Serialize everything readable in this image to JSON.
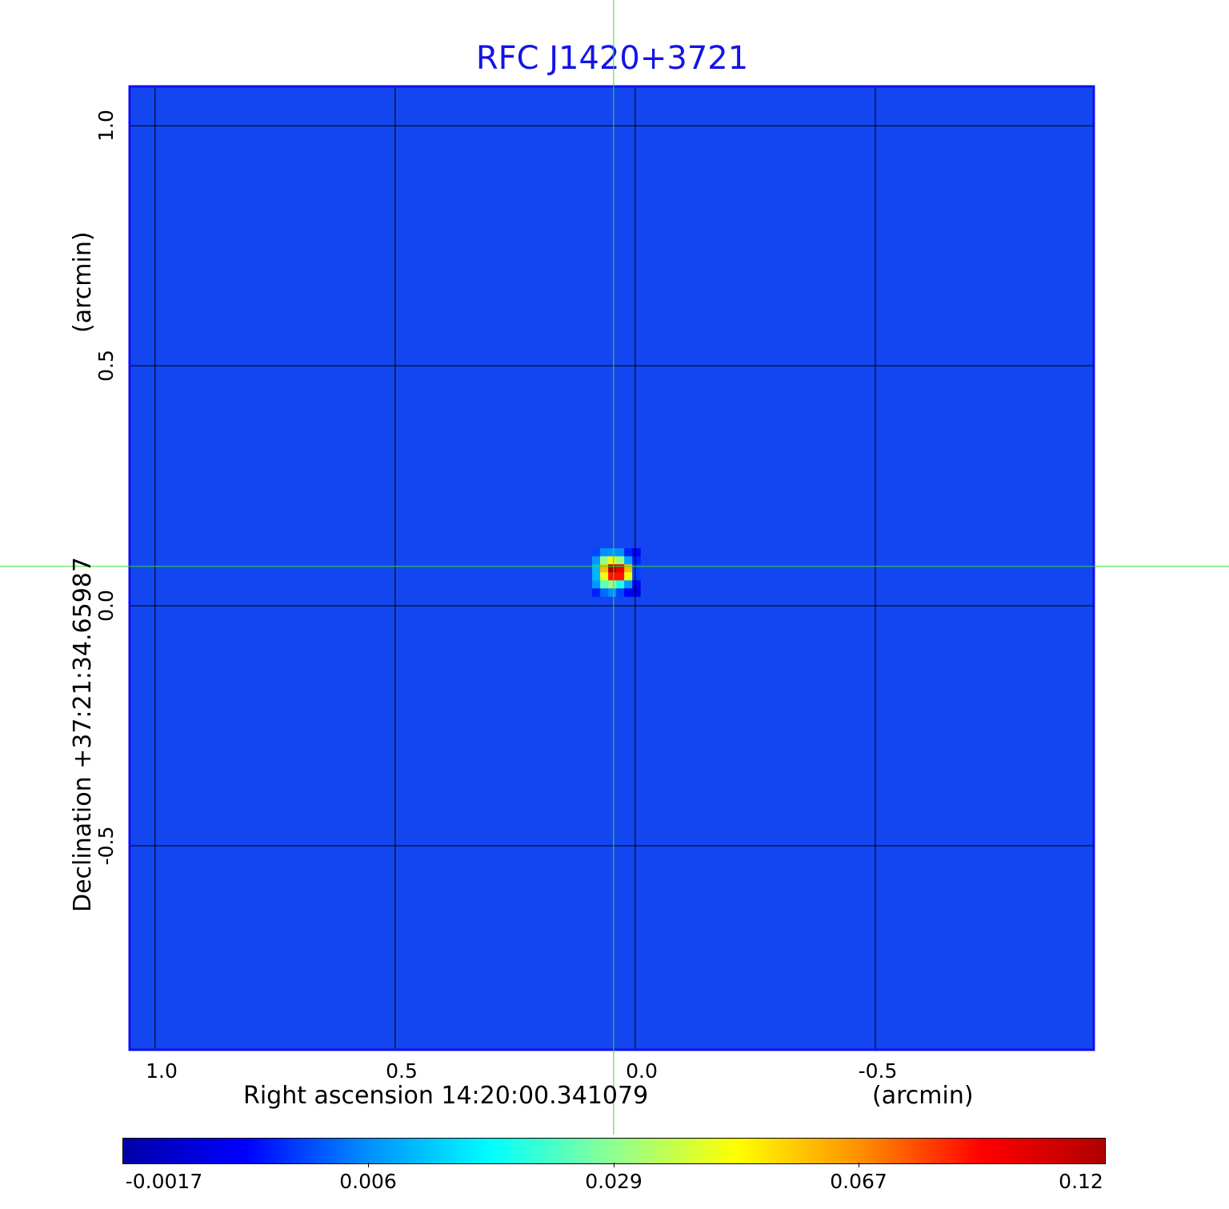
{
  "chart_data": {
    "type": "heatmap",
    "title": "RFC J1420+3721",
    "xlabel": "Right ascension  14:20:00.341079",
    "xunit": "(arcmin)",
    "ylabel": "Declination  +37:21:34.65987",
    "yunit": "(arcmin)",
    "xlim": [
      1.053,
      -0.955
    ],
    "ylim": [
      -0.925,
      1.082
    ],
    "xticks": [
      "1.0",
      "0.5",
      "0.0",
      "-0.5"
    ],
    "xtick_values": [
      1.0,
      0.5,
      0.0,
      -0.5
    ],
    "yticks": [
      "1.0",
      "0.5",
      "0.0",
      "-0.5"
    ],
    "ytick_values": [
      1.0,
      0.5,
      0.0,
      -0.5
    ],
    "grid": true,
    "crosshair": {
      "x": 0.045,
      "y": 0.082,
      "color": "#33dd33"
    },
    "background_value": 0.0015,
    "peak": {
      "x": 0.048,
      "y": 0.078,
      "value": 0.12
    },
    "cell_arcmin": 0.0167,
    "source_pixels": [
      [
        0.004,
        0.006,
        0.007,
        0.006,
        0.003,
        0.002
      ],
      [
        0.007,
        0.03,
        0.045,
        0.03,
        0.008,
        0.003
      ],
      [
        0.01,
        0.06,
        0.12,
        0.1,
        0.06,
        0.004
      ],
      [
        0.01,
        0.045,
        0.09,
        0.09,
        0.045,
        0.004
      ],
      [
        0.007,
        0.025,
        0.03,
        0.02,
        0.007,
        0.002
      ],
      [
        0.003,
        0.005,
        0.006,
        0.004,
        0.002,
        0.001
      ]
    ],
    "colorbar": {
      "ticks": [
        "-0.0017",
        "0.006",
        "0.029",
        "0.067",
        "0.12"
      ],
      "tick_values": [
        -0.0017,
        0.006,
        0.029,
        0.067,
        0.12
      ],
      "colors": [
        "#0000a8",
        "#0000ff",
        "#0090ff",
        "#00ffff",
        "#90ff90",
        "#ffff00",
        "#ff9000",
        "#ff0000",
        "#b00000"
      ]
    },
    "colors": {
      "title": "#1414e6",
      "frame": "#1010ee",
      "background": "#1446f0"
    }
  }
}
